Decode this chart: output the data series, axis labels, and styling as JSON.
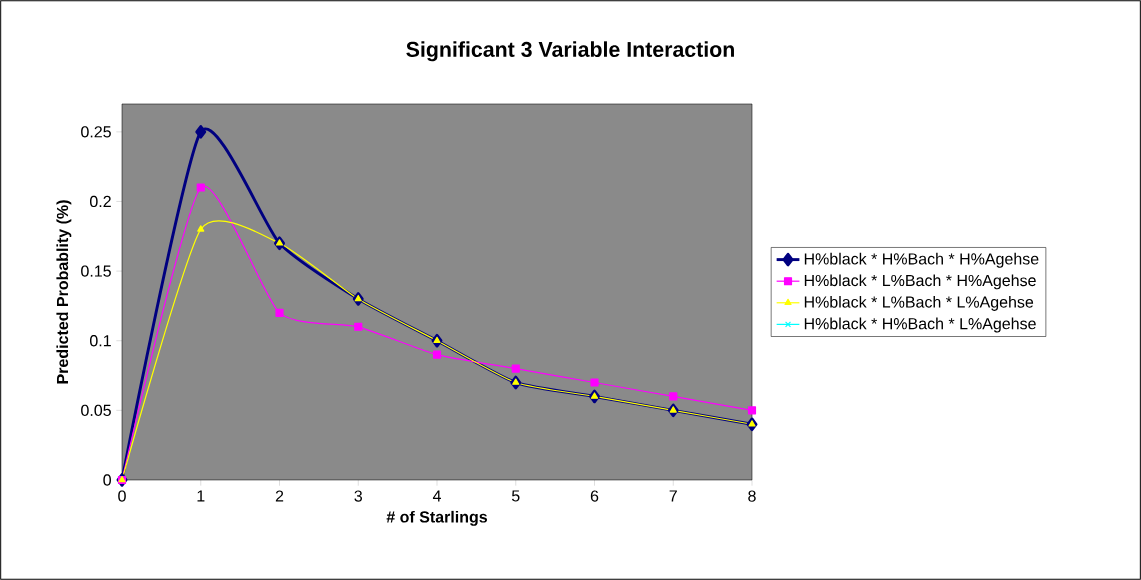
{
  "chart_data": {
    "type": "line",
    "title": "Significant 3 Variable Interaction",
    "xlabel": "# of Starlings",
    "ylabel": "Predicted Probablity (%)",
    "x": [
      0,
      1,
      2,
      3,
      4,
      5,
      6,
      7,
      8
    ],
    "series": [
      {
        "name": "H%black * H%Bach * H%Agehse",
        "color": "#000080",
        "marker": "diamond",
        "values": [
          0,
          0.25,
          0.17,
          0.13,
          0.1,
          0.07,
          0.06,
          0.05,
          0.04
        ]
      },
      {
        "name": "H%black *  L%Bach * H%Agehse",
        "color": "#ff00ff",
        "marker": "square",
        "values": [
          0,
          0.21,
          0.12,
          0.11,
          0.09,
          0.08,
          0.07,
          0.06,
          0.05
        ]
      },
      {
        "name": "H%black * L%Bach * L%Agehse",
        "color": "#ffff00",
        "marker": "triangle",
        "values": [
          0,
          0.18,
          0.17,
          0.13,
          0.1,
          0.07,
          0.06,
          0.05,
          0.04
        ]
      },
      {
        "name": "H%black * H%Bach * L%Agehse",
        "color": "#00ffff",
        "marker": "cross",
        "values": [
          null,
          null,
          null,
          null,
          null,
          null,
          null,
          null,
          null
        ]
      }
    ],
    "xlim": [
      0,
      8
    ],
    "xticks": [
      0,
      1,
      2,
      3,
      4,
      5,
      6,
      7,
      8
    ],
    "ylim": [
      0,
      0.27
    ],
    "yticks": [
      0,
      0.05,
      0.1,
      0.15,
      0.2,
      0.25
    ],
    "grid": false,
    "legend": "right"
  }
}
